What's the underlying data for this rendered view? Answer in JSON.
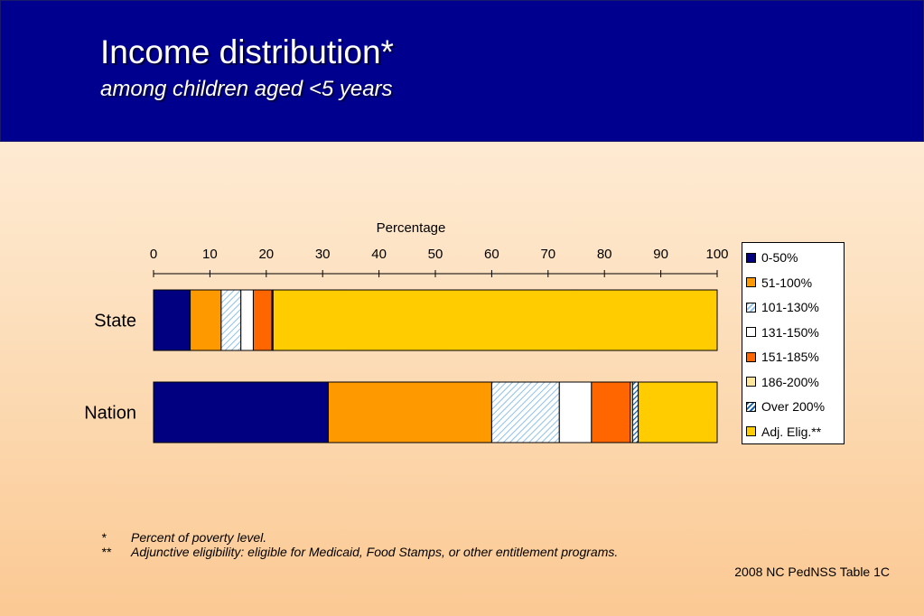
{
  "header": {
    "title": "Income distribution*",
    "subtitle": "among children aged <5 years"
  },
  "chart_data": {
    "type": "bar",
    "orientation": "horizontal",
    "stacked": true,
    "xlabel": "Percentage",
    "xlim": [
      0,
      100
    ],
    "ticks": [
      "0",
      "10",
      "20",
      "30",
      "40",
      "50",
      "60",
      "70",
      "80",
      "90",
      "100"
    ],
    "categories": [
      "State",
      "Nation"
    ],
    "series": [
      {
        "name": "0-50%",
        "color": "#000080",
        "pattern": "solid",
        "values": [
          6.5,
          31
        ]
      },
      {
        "name": "51-100%",
        "color": "#ff9900",
        "pattern": "solid",
        "values": [
          5.5,
          29
        ]
      },
      {
        "name": "101-130%",
        "color": "#c9e2f7",
        "pattern": "diagonal-light",
        "values": [
          3.5,
          12
        ]
      },
      {
        "name": "131-150%",
        "color": "#ffffff",
        "pattern": "solid",
        "values": [
          2.2,
          5.7
        ]
      },
      {
        "name": "151-185%",
        "color": "#ff6600",
        "pattern": "solid",
        "values": [
          3.3,
          6.9
        ]
      },
      {
        "name": "186-200%",
        "color": "#ffe699",
        "pattern": "solid",
        "values": [
          0.1,
          0.4
        ]
      },
      {
        "name": "Over 200%",
        "color": "#1f7fd0",
        "pattern": "diagonal-dark",
        "values": [
          0.1,
          1.0
        ]
      },
      {
        "name": "Adj. Elig.**",
        "color": "#ffcc00",
        "pattern": "solid",
        "values": [
          78.8,
          14
        ]
      }
    ],
    "legend_position": "right"
  },
  "footnotes": [
    {
      "mark": "*",
      "text": "Percent of poverty level."
    },
    {
      "mark": "**",
      "text": "Adjunctive eligibility:  eligible for Medicaid, Food Stamps, or other entitlement programs."
    }
  ],
  "source": "2008 NC PedNSS Table 1C"
}
